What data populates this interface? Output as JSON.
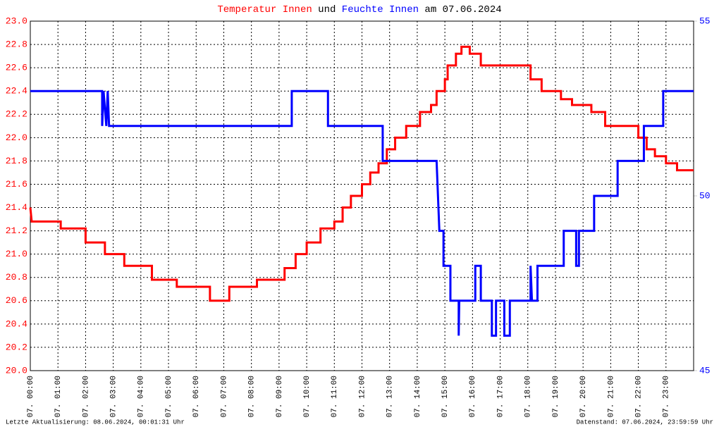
{
  "chart_data": {
    "type": "line",
    "step_data": true,
    "title_connector": "und",
    "title_suffix": "am 07.06.2024",
    "footer_left": "Letzte Aktualisierung: 08.06.2024, 00:01:31 Uhr",
    "footer_right": "Datenstand: 07.06.2024, 23:59:59 Uhr",
    "grid": true,
    "xlim": [
      0,
      24
    ],
    "xticks": [
      {
        "value": 0,
        "label": "07. 00:00"
      },
      {
        "value": 1,
        "label": "07. 01:00"
      },
      {
        "value": 2,
        "label": "07. 02:00"
      },
      {
        "value": 3,
        "label": "07. 03:00"
      },
      {
        "value": 4,
        "label": "07. 04:00"
      },
      {
        "value": 5,
        "label": "07. 05:00"
      },
      {
        "value": 6,
        "label": "07. 06:00"
      },
      {
        "value": 7,
        "label": "07. 07:00"
      },
      {
        "value": 8,
        "label": "07. 08:00"
      },
      {
        "value": 9,
        "label": "07. 09:00"
      },
      {
        "value": 10,
        "label": "07. 10:00"
      },
      {
        "value": 11,
        "label": "07. 11:00"
      },
      {
        "value": 12,
        "label": "07. 12:00"
      },
      {
        "value": 13,
        "label": "07. 13:00"
      },
      {
        "value": 14,
        "label": "07. 14:00"
      },
      {
        "value": 15,
        "label": "07. 15:00"
      },
      {
        "value": 16,
        "label": "07. 16:00"
      },
      {
        "value": 17,
        "label": "07. 17:00"
      },
      {
        "value": 18,
        "label": "07. 18:00"
      },
      {
        "value": 19,
        "label": "07. 19:00"
      },
      {
        "value": 20,
        "label": "07. 20:00"
      },
      {
        "value": 21,
        "label": "07. 21:00"
      },
      {
        "value": 22,
        "label": "07. 22:00"
      },
      {
        "value": 23,
        "label": "07. 23:00"
      }
    ],
    "ylim": [
      20,
      23
    ],
    "yticks": [
      {
        "value": 20,
        "label": "20.0"
      },
      20.2,
      20.4,
      20.6,
      20.8,
      {
        "value": 21,
        "label": "21.0"
      },
      21.2,
      21.4,
      21.6,
      21.8,
      {
        "value": 22,
        "label": "22.0"
      },
      22.2,
      22.4,
      22.6,
      22.8,
      {
        "value": 23,
        "label": "23.0"
      }
    ],
    "y2lim": [
      45,
      55
    ],
    "y2ticks": [
      45,
      50,
      55
    ],
    "series": [
      {
        "name": "Temperatur Innen",
        "color": "#ff0000",
        "x": [
          0,
          0.05,
          1.1,
          1.1,
          2.0,
          2.0,
          2.7,
          2.7,
          3.4,
          3.4,
          4.4,
          4.4,
          5.3,
          5.3,
          6.5,
          6.5,
          7.2,
          7.2,
          8.2,
          8.2,
          9.2,
          9.2,
          9.6,
          9.6,
          10.0,
          10.0,
          10.5,
          10.5,
          11.0,
          11.0,
          11.3,
          11.3,
          11.6,
          11.6,
          12.0,
          12.0,
          12.3,
          12.3,
          12.6,
          12.6,
          12.9,
          12.9,
          13.2,
          13.2,
          13.6,
          13.6,
          14.1,
          14.1,
          14.5,
          14.5,
          14.7,
          14.7,
          15.0,
          15.0,
          15.1,
          15.1,
          15.4,
          15.4,
          15.6,
          15.6,
          15.9,
          15.9,
          16.3,
          16.3,
          18.1,
          18.1,
          18.5,
          18.5,
          19.2,
          19.2,
          19.6,
          19.6,
          20.3,
          20.3,
          20.8,
          20.8,
          22.0,
          22.0,
          22.3,
          22.3,
          22.6,
          22.6,
          23.0,
          23.0,
          23.4,
          23.4,
          24
        ],
        "values": [
          21.4,
          21.28,
          21.28,
          21.22,
          21.22,
          21.1,
          21.1,
          21.0,
          21.0,
          20.9,
          20.9,
          20.78,
          20.78,
          20.72,
          20.72,
          20.6,
          20.6,
          20.72,
          20.72,
          20.78,
          20.78,
          20.88,
          20.88,
          21.0,
          21.0,
          21.1,
          21.1,
          21.22,
          21.22,
          21.28,
          21.28,
          21.4,
          21.4,
          21.5,
          21.5,
          21.6,
          21.6,
          21.7,
          21.7,
          21.78,
          21.78,
          21.9,
          21.9,
          22.0,
          22.0,
          22.1,
          22.1,
          22.22,
          22.22,
          22.28,
          22.28,
          22.4,
          22.4,
          22.5,
          22.5,
          22.62,
          22.62,
          22.72,
          22.72,
          22.78,
          22.78,
          22.72,
          22.72,
          22.62,
          22.62,
          22.5,
          22.5,
          22.4,
          22.4,
          22.33,
          22.33,
          22.28,
          22.28,
          22.22,
          22.22,
          22.1,
          22.1,
          22.0,
          22.0,
          21.9,
          21.9,
          21.84,
          21.84,
          21.78,
          21.78,
          21.72,
          21.72
        ]
      },
      {
        "name": "Feuchte Innen",
        "color": "#0000ff",
        "axis": "y2",
        "x": [
          0,
          2.6,
          2.6,
          2.65,
          2.75,
          2.8,
          2.85,
          9.46,
          9.46,
          10.77,
          10.77,
          12.75,
          12.75,
          14.7,
          14.8,
          14.95,
          14.95,
          15.2,
          15.2,
          15.5,
          15.5,
          15.52,
          16.1,
          16.1,
          16.3,
          16.3,
          16.7,
          16.7,
          16.85,
          16.85,
          17.15,
          17.15,
          17.35,
          17.35,
          18.1,
          18.1,
          18.15,
          18.35,
          18.35,
          19.3,
          19.3,
          19.75,
          19.75,
          19.85,
          19.85,
          20.4,
          20.4,
          21.25,
          21.25,
          22.2,
          22.2,
          22.9,
          22.9,
          24
        ],
        "values": [
          53,
          53,
          52,
          53,
          52,
          53,
          52,
          52,
          53,
          53,
          52,
          52,
          51,
          51,
          49,
          49,
          48,
          48,
          47,
          47,
          46,
          47,
          47,
          48,
          48,
          47,
          47,
          46,
          46,
          47,
          47,
          46,
          46,
          47,
          47,
          48,
          47,
          47,
          48,
          48,
          49,
          49,
          48,
          48,
          49,
          49,
          50,
          50,
          51,
          51,
          52,
          52,
          53,
          53
        ]
      }
    ]
  }
}
